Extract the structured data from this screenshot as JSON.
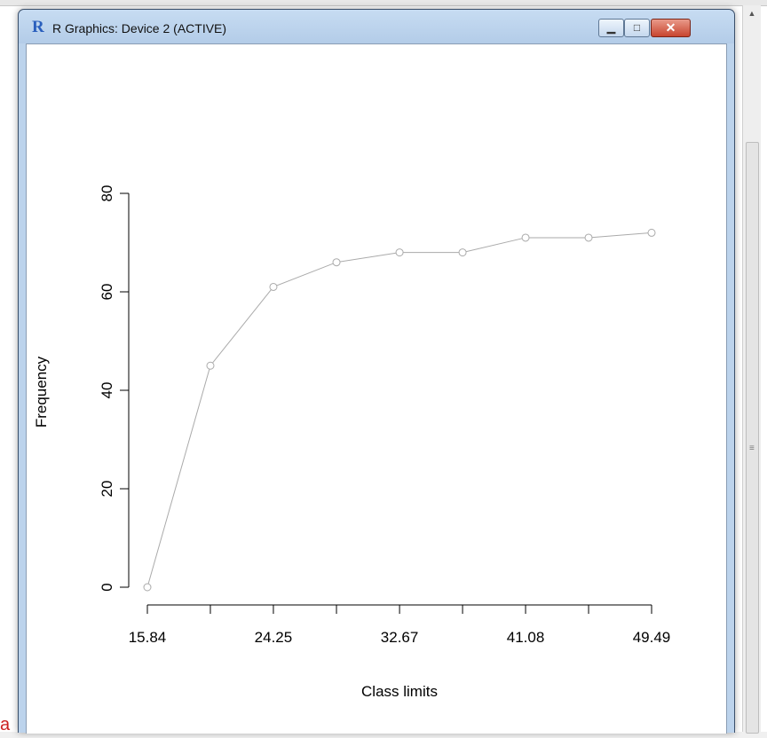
{
  "window": {
    "title": "R Graphics: Device 2 (ACTIVE)",
    "icon": "r-logo-icon",
    "controls": {
      "minimize": "minimize-icon",
      "maximize": "maximize-icon",
      "close": "close-icon"
    }
  },
  "background": {
    "partial_text": "a"
  },
  "colors": {
    "series": "#aaaaaa",
    "axis": "#000000",
    "text_accent": "#cc2020"
  },
  "chart_data": {
    "type": "line",
    "title": "",
    "xlabel": "Class limits",
    "ylabel": "Frequency",
    "x": [
      15.84,
      20.045,
      24.25,
      28.46,
      32.67,
      36.875,
      41.08,
      45.285,
      49.49
    ],
    "values": [
      0,
      45,
      61,
      66,
      68,
      68,
      71,
      71,
      72
    ],
    "x_tick_labels": [
      "15.84",
      "24.25",
      "32.67",
      "41.08",
      "49.49"
    ],
    "y_ticks": [
      0,
      20,
      40,
      60,
      80
    ],
    "xlim": [
      15.84,
      49.49
    ],
    "ylim": [
      0,
      80
    ],
    "markers": "open-circle",
    "grid": false
  }
}
